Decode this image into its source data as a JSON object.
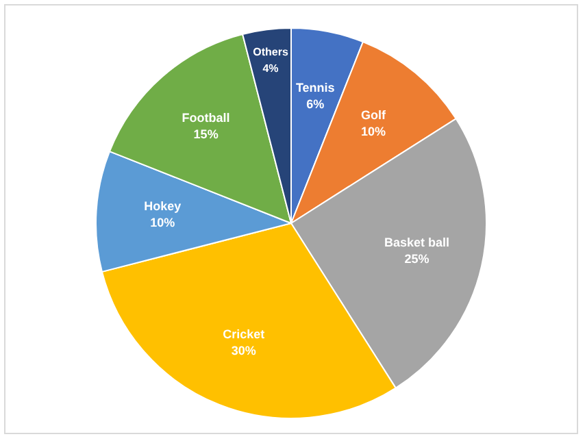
{
  "chart_data": {
    "type": "pie",
    "categories": [
      "Tennis",
      "Golf",
      "Basket ball",
      "Cricket",
      "Hokey",
      "Football",
      "Others"
    ],
    "values": [
      6,
      10,
      25,
      30,
      10,
      15,
      4
    ],
    "value_labels": [
      "6%",
      "10%",
      "25%",
      "30%",
      "10%",
      "15%",
      "4%"
    ],
    "colors": [
      "#4472c4",
      "#ed7d31",
      "#a5a5a5",
      "#ffc000",
      "#5b9bd5",
      "#70ad47",
      "#264478"
    ],
    "legend": false
  }
}
